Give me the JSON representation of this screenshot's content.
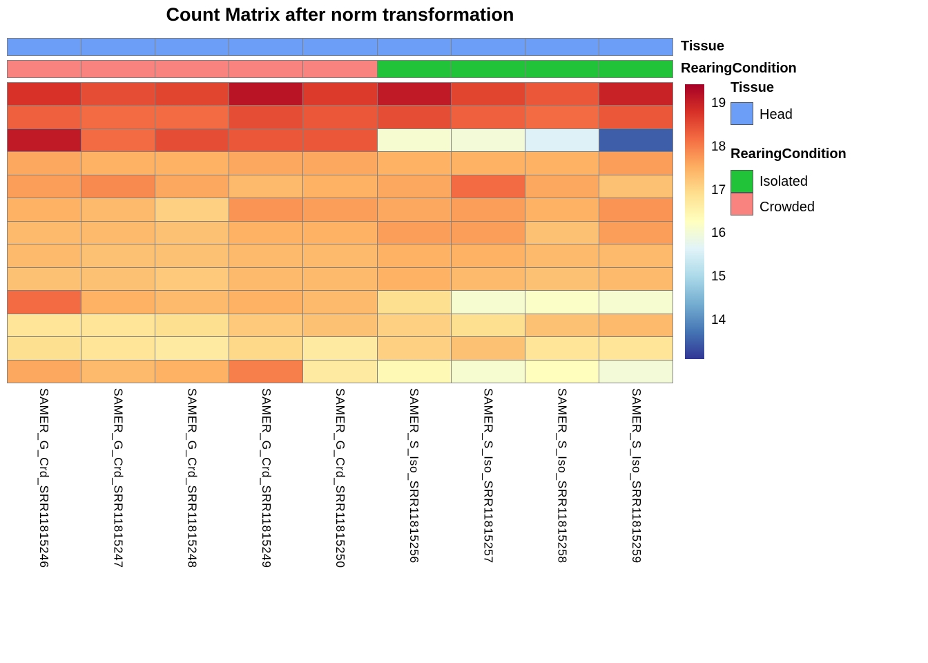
{
  "title": "Count Matrix after norm transformation",
  "annotation_rows": {
    "tissue": {
      "label": "Tissue",
      "values": [
        "Head",
        "Head",
        "Head",
        "Head",
        "Head",
        "Head",
        "Head",
        "Head",
        "Head"
      ]
    },
    "rearing": {
      "label": "RearingCondition",
      "values": [
        "Crowded",
        "Crowded",
        "Crowded",
        "Crowded",
        "Crowded",
        "Isolated",
        "Isolated",
        "Isolated",
        "Isolated"
      ]
    }
  },
  "annotation_colors": {
    "Head": "#6D9EF7",
    "Isolated": "#21C339",
    "Crowded": "#F9837E"
  },
  "legend": {
    "tissue_title": "Tissue",
    "tissue_items": [
      {
        "label": "Head",
        "color": "#6D9EF7"
      }
    ],
    "rearing_title": "RearingCondition",
    "rearing_items": [
      {
        "label": "Isolated",
        "color": "#21C339"
      },
      {
        "label": "Crowded",
        "color": "#F9837E"
      }
    ]
  },
  "colorbar": {
    "ticks": [
      19,
      18,
      17,
      16,
      15,
      14
    ],
    "vmin": 13.1,
    "vmax": 19.45,
    "stops_low_to_high": [
      "#313695",
      "#4575B4",
      "#74ADD1",
      "#ABD9E9",
      "#E0F3F8",
      "#FFFFBF",
      "#FEE090",
      "#FDAE61",
      "#F46D43",
      "#D73027",
      "#A50026"
    ]
  },
  "chart_data": {
    "type": "heatmap",
    "title": "Count Matrix after norm transformation",
    "colormap": "RdYlBu reversed",
    "value_range": [
      13.1,
      19.45
    ],
    "grid_color": "#808080",
    "legend_position": "right",
    "columns": [
      "SAMER_G_Crd_SRR11815246",
      "SAMER_G_Crd_SRR11815247",
      "SAMER_G_Crd_SRR11815248",
      "SAMER_G_Crd_SRR11815249",
      "SAMER_G_Crd_SRR11815250",
      "SAMER_S_Iso_SRR11815256",
      "SAMER_S_Iso_SRR11815257",
      "SAMER_S_Iso_SRR11815258",
      "SAMER_S_Iso_SRR11815259"
    ],
    "column_annotations": {
      "Tissue": [
        "Head",
        "Head",
        "Head",
        "Head",
        "Head",
        "Head",
        "Head",
        "Head",
        "Head"
      ],
      "RearingCondition": [
        "Crowded",
        "Crowded",
        "Crowded",
        "Crowded",
        "Crowded",
        "Isolated",
        "Isolated",
        "Isolated",
        "Isolated"
      ]
    },
    "values": [
      [
        18.8,
        18.5,
        18.6,
        19.2,
        18.7,
        19.1,
        18.6,
        18.4,
        19.0
      ],
      [
        18.3,
        18.2,
        18.2,
        18.5,
        18.4,
        18.5,
        18.3,
        18.2,
        18.4
      ],
      [
        19.1,
        18.2,
        18.5,
        18.4,
        18.4,
        16.1,
        16.0,
        15.6,
        13.5
      ],
      [
        17.6,
        17.5,
        17.5,
        17.6,
        17.6,
        17.5,
        17.5,
        17.5,
        17.7
      ],
      [
        17.7,
        17.9,
        17.6,
        17.4,
        17.5,
        17.6,
        18.2,
        17.6,
        17.3
      ],
      [
        17.5,
        17.4,
        17.1,
        17.8,
        17.7,
        17.6,
        17.7,
        17.5,
        17.8
      ],
      [
        17.4,
        17.4,
        17.3,
        17.5,
        17.5,
        17.7,
        17.7,
        17.3,
        17.7
      ],
      [
        17.4,
        17.3,
        17.3,
        17.4,
        17.4,
        17.5,
        17.5,
        17.4,
        17.4
      ],
      [
        17.3,
        17.3,
        17.2,
        17.4,
        17.4,
        17.5,
        17.4,
        17.3,
        17.4
      ],
      [
        18.2,
        17.5,
        17.4,
        17.5,
        17.4,
        16.9,
        16.1,
        16.2,
        16.1
      ],
      [
        16.8,
        16.8,
        16.9,
        17.2,
        17.3,
        17.1,
        16.9,
        17.3,
        17.4
      ],
      [
        16.9,
        16.8,
        16.7,
        17.0,
        16.7,
        17.1,
        17.3,
        16.8,
        16.8
      ],
      [
        17.6,
        17.4,
        17.5,
        18.0,
        16.7,
        16.4,
        16.1,
        16.3,
        16.0
      ]
    ]
  }
}
